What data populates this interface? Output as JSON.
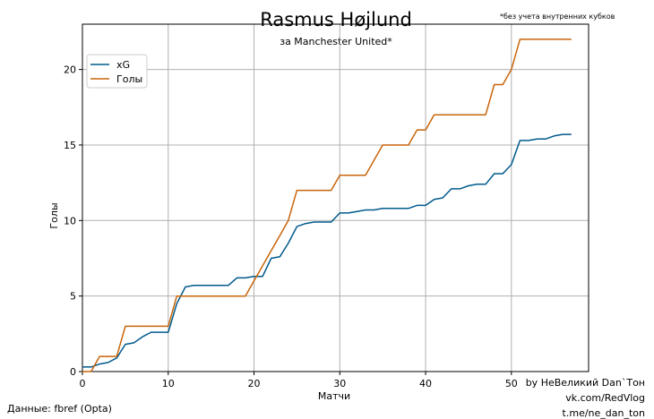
{
  "chart_data": {
    "type": "line",
    "title": "Rasmus Højlund",
    "subtitle": "за Manchester United*",
    "note": "*без учета внутренних кубков",
    "xlabel": "Матчи",
    "ylabel": "Голы",
    "xlim": [
      0,
      59
    ],
    "ylim": [
      0,
      23
    ],
    "xticks": [
      0,
      10,
      20,
      30,
      40,
      50
    ],
    "yticks": [
      0,
      5,
      10,
      15,
      20
    ],
    "grid": true,
    "legend_position": "top-left",
    "series": [
      {
        "name": "xG",
        "color": "#005a8c",
        "x": [
          0,
          1,
          2,
          3,
          4,
          5,
          6,
          7,
          8,
          9,
          10,
          11,
          12,
          13,
          14,
          15,
          16,
          17,
          18,
          19,
          20,
          21,
          22,
          23,
          24,
          25,
          26,
          27,
          28,
          29,
          30,
          31,
          32,
          33,
          34,
          35,
          36,
          37,
          38,
          39,
          40,
          41,
          42,
          43,
          44,
          45,
          46,
          47,
          48,
          49,
          50,
          51,
          52,
          53,
          54,
          55,
          56,
          57
        ],
        "values": [
          0.3,
          0.3,
          0.5,
          0.6,
          0.9,
          1.8,
          1.9,
          2.3,
          2.6,
          2.6,
          2.6,
          4.5,
          5.6,
          5.7,
          5.7,
          5.7,
          5.7,
          5.7,
          6.2,
          6.2,
          6.3,
          6.3,
          7.5,
          7.6,
          8.5,
          9.6,
          9.8,
          9.9,
          9.9,
          9.9,
          10.5,
          10.5,
          10.6,
          10.7,
          10.7,
          10.8,
          10.8,
          10.8,
          10.8,
          11.0,
          11.0,
          11.4,
          11.5,
          12.1,
          12.1,
          12.3,
          12.4,
          12.4,
          13.1,
          13.1,
          13.7,
          15.3,
          15.3,
          15.4,
          15.4,
          15.6,
          15.7,
          15.7
        ]
      },
      {
        "name": "Голы",
        "color": "#c8650a",
        "x": [
          0,
          1,
          2,
          3,
          4,
          5,
          6,
          7,
          8,
          9,
          10,
          11,
          12,
          13,
          14,
          15,
          16,
          17,
          18,
          19,
          20,
          21,
          22,
          23,
          24,
          25,
          26,
          27,
          28,
          29,
          30,
          31,
          32,
          33,
          34,
          35,
          36,
          37,
          38,
          39,
          40,
          41,
          42,
          43,
          44,
          45,
          46,
          47,
          48,
          49,
          50,
          51,
          52,
          53,
          54,
          55,
          56,
          57
        ],
        "values": [
          0,
          0,
          1,
          1,
          1,
          3,
          3,
          3,
          3,
          3,
          3,
          5,
          5,
          5,
          5,
          5,
          5,
          5,
          5,
          5,
          6,
          7,
          8,
          9,
          10,
          12,
          12,
          12,
          12,
          12,
          13,
          13,
          13,
          13,
          14,
          15,
          15,
          15,
          15,
          16,
          16,
          17,
          17,
          17,
          17,
          17,
          17,
          17,
          19,
          19,
          20,
          22,
          22,
          22,
          22,
          22,
          22,
          22
        ]
      }
    ]
  },
  "credits": [
    "by НеВеликий Dan`Тон",
    "vk.com/RedVlog",
    "t.me/ne_dan_ton"
  ],
  "source": "Данные: fbref (Opta)"
}
